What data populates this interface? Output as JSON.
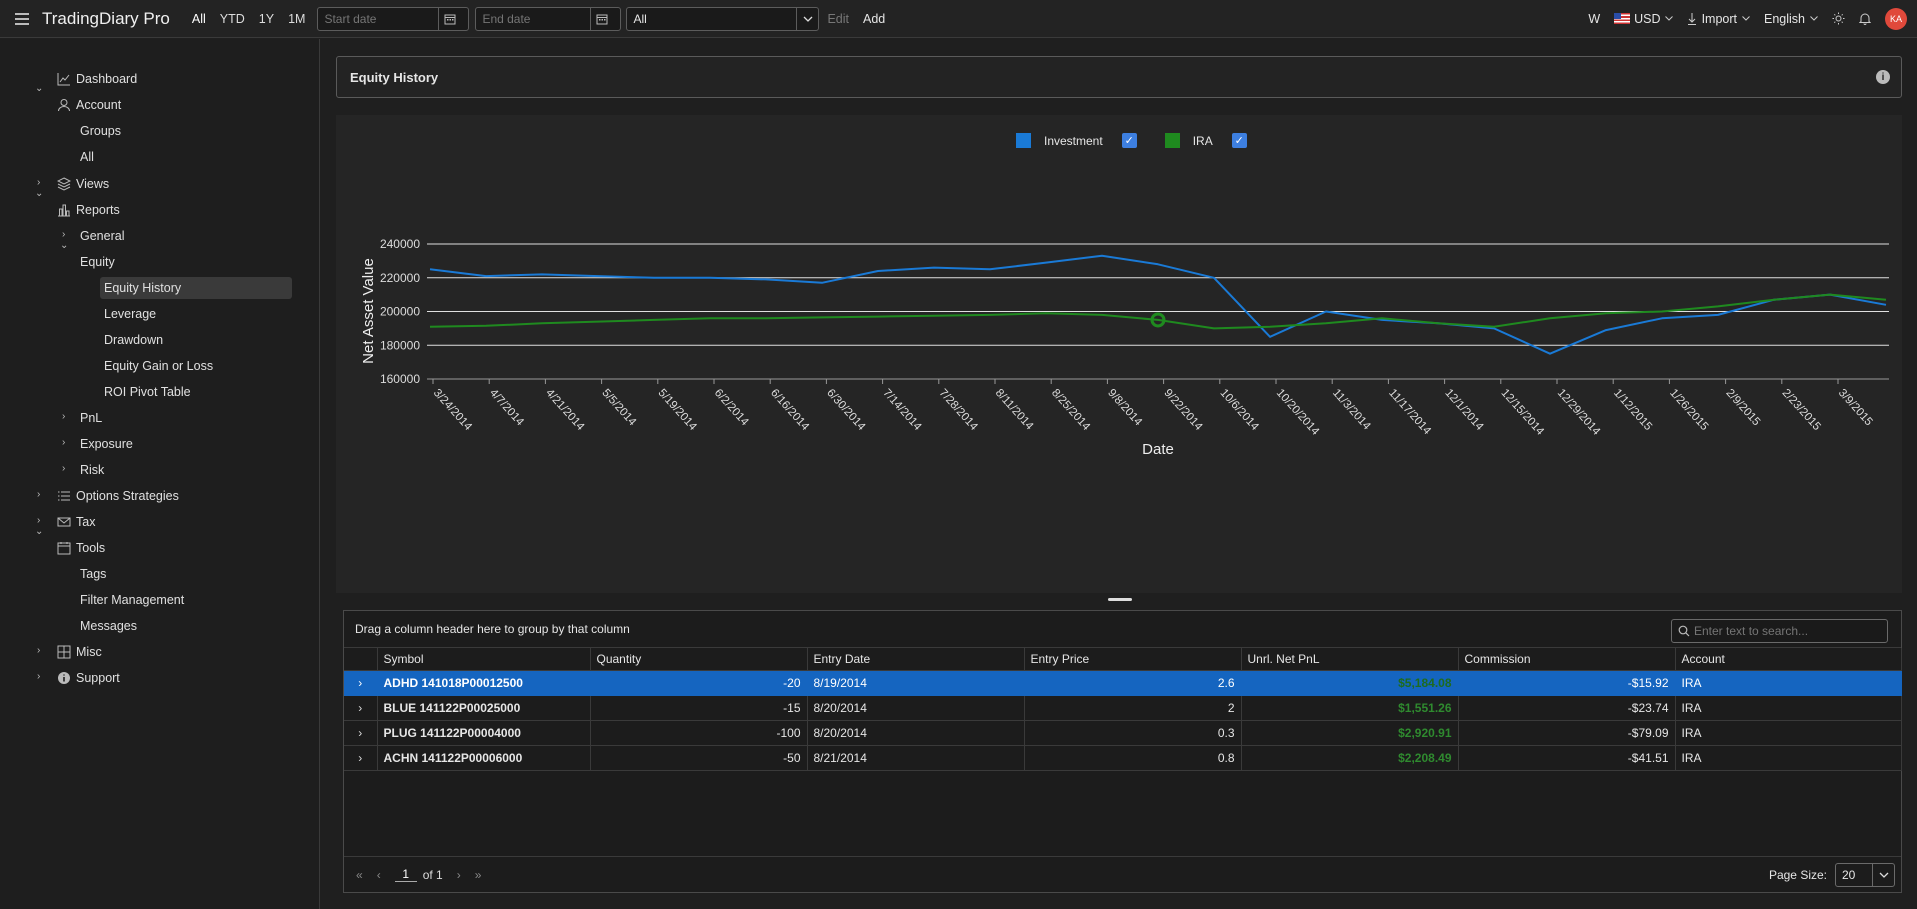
{
  "app": {
    "title": "TradingDiary Pro"
  },
  "toolbar": {
    "ranges": [
      "All",
      "YTD",
      "1Y",
      "1M"
    ],
    "start_placeholder": "Start date",
    "end_placeholder": "End date",
    "account_select": "All",
    "edit_label": "Edit",
    "add_label": "Add",
    "w_label": "W",
    "currency": "USD",
    "import_label": "Import",
    "language": "English",
    "avatar_initials": "KA"
  },
  "sidebar": {
    "dashboard": "Dashboard",
    "account": "Account",
    "groups": "Groups",
    "all": "All",
    "views": "Views",
    "reports": "Reports",
    "general": "General",
    "equity": "Equity",
    "equity_history": "Equity History",
    "leverage": "Leverage",
    "drawdown": "Drawdown",
    "equity_gain_loss": "Equity Gain or Loss",
    "roi_pivot": "ROI Pivot Table",
    "pnl": "PnL",
    "exposure": "Exposure",
    "risk": "Risk",
    "options_strategies": "Options Strategies",
    "tax": "Tax",
    "tools": "Tools",
    "tags": "Tags",
    "filter_management": "Filter Management",
    "messages": "Messages",
    "misc": "Misc",
    "support": "Support"
  },
  "page": {
    "title": "Equity History"
  },
  "chart_data": {
    "type": "line",
    "xlabel": "Date",
    "ylabel": "Net Asset Value",
    "ylim": [
      160000,
      240000
    ],
    "yticks": [
      "240000",
      "220000",
      "200000",
      "180000",
      "160000"
    ],
    "x_ticks": [
      "3/24/2014",
      "4/7/2014",
      "4/21/2014",
      "5/5/2014",
      "5/19/2014",
      "6/2/2014",
      "6/16/2014",
      "6/30/2014",
      "7/14/2014",
      "7/28/2014",
      "8/11/2014",
      "8/25/2014",
      "9/8/2014",
      "9/22/2014",
      "10/6/2014",
      "10/20/2014",
      "11/3/2014",
      "11/17/2014",
      "12/1/2014",
      "12/15/2014",
      "12/29/2014",
      "1/12/2015",
      "1/26/2015",
      "2/9/2015",
      "2/23/2015",
      "3/9/2015"
    ],
    "grid": "horizontal",
    "legend_position": "top",
    "series": [
      {
        "name": "Investment",
        "color": "#1a7ad6",
        "values": [
          225000,
          221000,
          222000,
          221000,
          220000,
          220000,
          219000,
          217000,
          224000,
          226000,
          225000,
          229000,
          233000,
          228000,
          220000,
          185000,
          200000,
          195000,
          193000,
          190000,
          175000,
          189000,
          196000,
          198000,
          207000,
          210000,
          204000
        ]
      },
      {
        "name": "IRA",
        "color": "#1f8a1f",
        "values": [
          191000,
          191500,
          193000,
          194000,
          195000,
          196000,
          196000,
          196500,
          197000,
          197500,
          198000,
          199000,
          198000,
          195000,
          190000,
          191000,
          193000,
          196000,
          193000,
          191000,
          196000,
          199000,
          200000,
          203000,
          207000,
          210000,
          207000
        ]
      }
    ]
  },
  "grid": {
    "group_hint": "Drag a column header here to group by that column",
    "search_placeholder": "Enter text to search...",
    "columns": [
      "Symbol",
      "Quantity",
      "Entry Date",
      "Entry Price",
      "Unrl. Net PnL",
      "Commission",
      "Account"
    ],
    "rows": [
      {
        "symbol": "ADHD 141018P00012500",
        "quantity": "-20",
        "entry_date": "8/19/2014",
        "entry_price": "2.6",
        "pnl": "$5,184.08",
        "commission": "-$15.92",
        "account": "IRA"
      },
      {
        "symbol": "BLUE 141122P00025000",
        "quantity": "-15",
        "entry_date": "8/20/2014",
        "entry_price": "2",
        "pnl": "$1,551.26",
        "commission": "-$23.74",
        "account": "IRA"
      },
      {
        "symbol": "PLUG 141122P00004000",
        "quantity": "-100",
        "entry_date": "8/20/2014",
        "entry_price": "0.3",
        "pnl": "$2,920.91",
        "commission": "-$79.09",
        "account": "IRA"
      },
      {
        "symbol": "ACHN 141122P00006000",
        "quantity": "-50",
        "entry_date": "8/21/2014",
        "entry_price": "0.8",
        "pnl": "$2,208.49",
        "commission": "-$41.51",
        "account": "IRA"
      }
    ],
    "pager": {
      "page": "1",
      "of_label": "of 1",
      "page_size_label": "Page Size:",
      "page_size": "20"
    }
  }
}
